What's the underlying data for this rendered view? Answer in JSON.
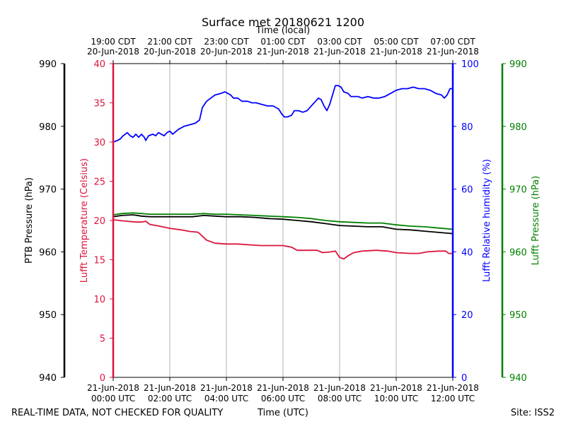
{
  "chart_data": {
    "type": "line",
    "title": "Surface met 20180621 1200",
    "x_label_top": "Time (local)",
    "x_label_bottom": "Time (UTC)",
    "footer_left": "REAL-TIME DATA, NOT CHECKED FOR QUALITY",
    "footer_right": "Site: ISS2",
    "x_range_hours": [
      0,
      12
    ],
    "bottom_ticks": [
      {
        "hour": 0,
        "date": "21-Jun-2018",
        "time": "00:00 UTC"
      },
      {
        "hour": 2,
        "date": "21-Jun-2018",
        "time": "02:00 UTC"
      },
      {
        "hour": 4,
        "date": "21-Jun-2018",
        "time": "04:00 UTC"
      },
      {
        "hour": 6,
        "date": "21-Jun-2018",
        "time": "06:00 UTC"
      },
      {
        "hour": 8,
        "date": "21-Jun-2018",
        "time": "08:00 UTC"
      },
      {
        "hour": 10,
        "date": "21-Jun-2018",
        "time": "10:00 UTC"
      },
      {
        "hour": 12,
        "date": "21-Jun-2018",
        "time": "12:00 UTC"
      }
    ],
    "top_ticks": [
      {
        "hour": 0,
        "time": "19:00 CDT",
        "date": "20-Jun-2018"
      },
      {
        "hour": 2,
        "time": "21:00 CDT",
        "date": "20-Jun-2018"
      },
      {
        "hour": 4,
        "time": "23:00 CDT",
        "date": "20-Jun-2018"
      },
      {
        "hour": 6,
        "time": "01:00 CDT",
        "date": "21-Jun-2018"
      },
      {
        "hour": 8,
        "time": "03:00 CDT",
        "date": "21-Jun-2018"
      },
      {
        "hour": 10,
        "time": "05:00 CDT",
        "date": "21-Jun-2018"
      },
      {
        "hour": 12,
        "time": "07:00 CDT",
        "date": "21-Jun-2018"
      }
    ],
    "axes": {
      "ptb_pressure": {
        "label": "PTB Pressure (hPa)",
        "range": [
          940,
          990
        ],
        "ticks": [
          940,
          950,
          960,
          970,
          980,
          990
        ],
        "color": "#000000"
      },
      "temperature": {
        "label": "Lufft Temperature (Celsius)",
        "range": [
          0,
          40
        ],
        "ticks": [
          0,
          5,
          10,
          15,
          20,
          25,
          30,
          35,
          40
        ],
        "color": "#dc143c"
      },
      "humidity": {
        "label": "Lufft Relative humidity (%)",
        "range": [
          0,
          100
        ],
        "ticks": [
          0,
          20,
          40,
          60,
          80,
          100
        ],
        "color": "#0000ff"
      },
      "lufft_pressure": {
        "label": "Lufft Pressure (hPa)",
        "range": [
          940,
          990
        ],
        "ticks": [
          940,
          950,
          960,
          970,
          980,
          990
        ],
        "color": "#008000"
      }
    },
    "series": [
      {
        "name": "Lufft Relative humidity (%)",
        "axis": "humidity",
        "color": "#0000ff",
        "points": [
          [
            0,
            75
          ],
          [
            0.15,
            75.5
          ],
          [
            0.25,
            76
          ],
          [
            0.35,
            77
          ],
          [
            0.5,
            78
          ],
          [
            0.6,
            77
          ],
          [
            0.7,
            76.5
          ],
          [
            0.8,
            77.5
          ],
          [
            0.9,
            76.5
          ],
          [
            1.0,
            77.5
          ],
          [
            1.1,
            76.5
          ],
          [
            1.15,
            75.5
          ],
          [
            1.25,
            77
          ],
          [
            1.4,
            77.5
          ],
          [
            1.5,
            77
          ],
          [
            1.6,
            78
          ],
          [
            1.7,
            77.5
          ],
          [
            1.8,
            77
          ],
          [
            1.9,
            78
          ],
          [
            2.0,
            78.5
          ],
          [
            2.1,
            77.5
          ],
          [
            2.3,
            79
          ],
          [
            2.5,
            80
          ],
          [
            2.7,
            80.5
          ],
          [
            2.9,
            81
          ],
          [
            3.05,
            82
          ],
          [
            3.15,
            86
          ],
          [
            3.3,
            88
          ],
          [
            3.45,
            89
          ],
          [
            3.6,
            90
          ],
          [
            3.8,
            90.5
          ],
          [
            3.95,
            91
          ],
          [
            4.05,
            90.5
          ],
          [
            4.15,
            90
          ],
          [
            4.25,
            89
          ],
          [
            4.4,
            89
          ],
          [
            4.55,
            88
          ],
          [
            4.75,
            88
          ],
          [
            4.9,
            87.5
          ],
          [
            5.05,
            87.5
          ],
          [
            5.25,
            87
          ],
          [
            5.45,
            86.5
          ],
          [
            5.65,
            86.5
          ],
          [
            5.85,
            85.5
          ],
          [
            5.95,
            84
          ],
          [
            6.05,
            83
          ],
          [
            6.15,
            83
          ],
          [
            6.3,
            83.5
          ],
          [
            6.4,
            85
          ],
          [
            6.55,
            85
          ],
          [
            6.7,
            84.5
          ],
          [
            6.85,
            85
          ],
          [
            6.95,
            86
          ],
          [
            7.05,
            87
          ],
          [
            7.15,
            88
          ],
          [
            7.25,
            89
          ],
          [
            7.35,
            88.5
          ],
          [
            7.45,
            86.5
          ],
          [
            7.55,
            85
          ],
          [
            7.65,
            87
          ],
          [
            7.75,
            90
          ],
          [
            7.85,
            93
          ],
          [
            7.95,
            93
          ],
          [
            8.05,
            92.5
          ],
          [
            8.15,
            91
          ],
          [
            8.3,
            90.5
          ],
          [
            8.4,
            89.5
          ],
          [
            8.55,
            89.5
          ],
          [
            8.65,
            89.5
          ],
          [
            8.8,
            89
          ],
          [
            9.0,
            89.5
          ],
          [
            9.2,
            89
          ],
          [
            9.4,
            89
          ],
          [
            9.6,
            89.5
          ],
          [
            9.8,
            90.5
          ],
          [
            10.0,
            91.5
          ],
          [
            10.2,
            92
          ],
          [
            10.4,
            92
          ],
          [
            10.6,
            92.5
          ],
          [
            10.8,
            92
          ],
          [
            11.0,
            92
          ],
          [
            11.2,
            91.5
          ],
          [
            11.4,
            90.5
          ],
          [
            11.6,
            90
          ],
          [
            11.7,
            89
          ],
          [
            11.8,
            90
          ],
          [
            11.9,
            92
          ],
          [
            12.0,
            92
          ]
        ]
      },
      {
        "name": "Lufft Pressure (hPa)",
        "axis": "lufft_pressure",
        "color": "#008000",
        "points": [
          [
            0,
            965.9
          ],
          [
            0.3,
            966.1
          ],
          [
            0.7,
            966.2
          ],
          [
            1.0,
            966.1
          ],
          [
            1.3,
            966.0
          ],
          [
            1.6,
            966.0
          ],
          [
            2.0,
            966.0
          ],
          [
            2.4,
            966.0
          ],
          [
            2.8,
            966.0
          ],
          [
            3.2,
            966.1
          ],
          [
            3.6,
            966.0
          ],
          [
            4.0,
            966.0
          ],
          [
            4.5,
            965.9
          ],
          [
            5.0,
            965.8
          ],
          [
            5.5,
            965.7
          ],
          [
            6.0,
            965.6
          ],
          [
            6.5,
            965.5
          ],
          [
            7.0,
            965.3
          ],
          [
            7.5,
            965.0
          ],
          [
            8.0,
            964.8
          ],
          [
            8.5,
            964.7
          ],
          [
            9.0,
            964.6
          ],
          [
            9.5,
            964.6
          ],
          [
            10.0,
            964.3
          ],
          [
            10.5,
            964.1
          ],
          [
            11.0,
            964.0
          ],
          [
            11.5,
            963.8
          ],
          [
            12.0,
            963.6
          ]
        ]
      },
      {
        "name": "PTB Pressure (hPa)",
        "axis": "ptb_pressure",
        "color": "#000000",
        "points": [
          [
            0,
            965.6
          ],
          [
            0.3,
            965.8
          ],
          [
            0.7,
            965.9
          ],
          [
            1.0,
            965.7
          ],
          [
            1.3,
            965.6
          ],
          [
            1.6,
            965.6
          ],
          [
            2.0,
            965.6
          ],
          [
            2.4,
            965.6
          ],
          [
            2.8,
            965.6
          ],
          [
            3.2,
            965.8
          ],
          [
            3.6,
            965.7
          ],
          [
            4.0,
            965.6
          ],
          [
            4.5,
            965.6
          ],
          [
            5.0,
            965.5
          ],
          [
            5.5,
            965.3
          ],
          [
            6.0,
            965.2
          ],
          [
            6.5,
            965.0
          ],
          [
            7.0,
            964.8
          ],
          [
            7.5,
            964.5
          ],
          [
            8.0,
            964.2
          ],
          [
            8.5,
            964.1
          ],
          [
            9.0,
            964.0
          ],
          [
            9.5,
            964.0
          ],
          [
            10.0,
            963.6
          ],
          [
            10.5,
            963.5
          ],
          [
            11.0,
            963.3
          ],
          [
            11.5,
            963.1
          ],
          [
            12.0,
            962.9
          ]
        ]
      },
      {
        "name": "Lufft Temperature (Celsius)",
        "axis": "temperature",
        "color": "#dc143c",
        "points": [
          [
            0,
            20.1
          ],
          [
            0.2,
            20.0
          ],
          [
            0.5,
            19.9
          ],
          [
            0.8,
            19.8
          ],
          [
            1.0,
            19.8
          ],
          [
            1.15,
            19.9
          ],
          [
            1.3,
            19.5
          ],
          [
            1.6,
            19.3
          ],
          [
            2.0,
            19.0
          ],
          [
            2.4,
            18.8
          ],
          [
            2.7,
            18.6
          ],
          [
            3.0,
            18.5
          ],
          [
            3.15,
            18.0
          ],
          [
            3.3,
            17.5
          ],
          [
            3.6,
            17.1
          ],
          [
            4.0,
            17.0
          ],
          [
            4.4,
            17.0
          ],
          [
            4.8,
            16.9
          ],
          [
            5.2,
            16.8
          ],
          [
            5.6,
            16.8
          ],
          [
            6.0,
            16.8
          ],
          [
            6.3,
            16.6
          ],
          [
            6.5,
            16.2
          ],
          [
            6.9,
            16.2
          ],
          [
            7.2,
            16.2
          ],
          [
            7.4,
            15.9
          ],
          [
            7.7,
            16.0
          ],
          [
            7.85,
            16.1
          ],
          [
            8.0,
            15.3
          ],
          [
            8.15,
            15.1
          ],
          [
            8.3,
            15.5
          ],
          [
            8.5,
            15.9
          ],
          [
            8.8,
            16.1
          ],
          [
            9.3,
            16.2
          ],
          [
            9.7,
            16.1
          ],
          [
            10.0,
            15.9
          ],
          [
            10.5,
            15.8
          ],
          [
            10.8,
            15.8
          ],
          [
            11.1,
            16.0
          ],
          [
            11.5,
            16.1
          ],
          [
            11.75,
            16.1
          ],
          [
            11.85,
            15.8
          ],
          [
            12.0,
            15.8
          ]
        ]
      }
    ]
  }
}
